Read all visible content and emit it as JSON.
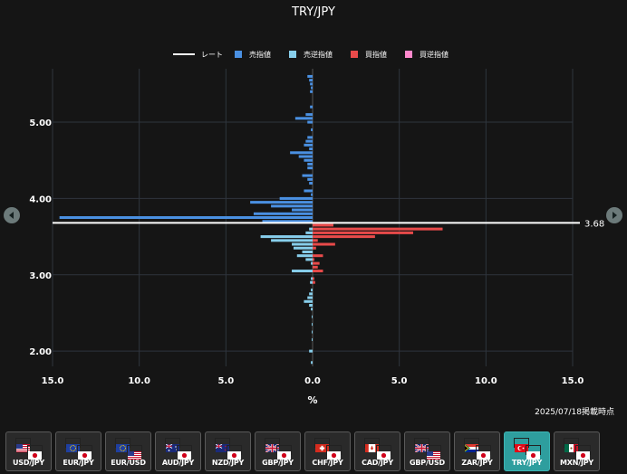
{
  "chart_data": {
    "type": "bar",
    "orientation": "horizontal",
    "title": "TRY/JPY",
    "xlabel": "%",
    "xlim": [
      -15,
      15
    ],
    "x_tick_values": [
      -15,
      -10,
      -5,
      0,
      5,
      10,
      15
    ],
    "x_tick_labels": [
      "15.0",
      "10.0",
      "5.0",
      "0.0",
      "5.0",
      "10.0",
      "15.0"
    ],
    "ylim": [
      1.8,
      5.7
    ],
    "y_tick_values": [
      2.0,
      3.0,
      4.0,
      5.0
    ],
    "y_tick_labels": [
      "2.00",
      "3.00",
      "4.00",
      "5.00"
    ],
    "bin_size": 0.05,
    "grid": true,
    "legend_position": "top",
    "legend": [
      {
        "name": "レート",
        "color": "#ffffff",
        "shape": "line"
      },
      {
        "name": "売指値",
        "color": "#4a90e2",
        "shape": "square"
      },
      {
        "name": "売逆指値",
        "color": "#87ceeb",
        "shape": "square"
      },
      {
        "name": "買指値",
        "color": "#e84a4a",
        "shape": "square"
      },
      {
        "name": "買逆指値",
        "color": "#ff88cc",
        "shape": "square"
      }
    ],
    "rate": {
      "value": 3.68,
      "label": "3.68"
    },
    "series": [
      {
        "name": "売指値",
        "side": "left",
        "color": "#4a90e2",
        "points": [
          {
            "price": 5.6,
            "value": 0.3
          },
          {
            "price": 5.55,
            "value": 0.2
          },
          {
            "price": 5.5,
            "value": 0.15
          },
          {
            "price": 5.45,
            "value": 0.1
          },
          {
            "price": 5.4,
            "value": 0.15
          },
          {
            "price": 5.2,
            "value": 0.15
          },
          {
            "price": 5.1,
            "value": 0.4
          },
          {
            "price": 5.05,
            "value": 1.0
          },
          {
            "price": 5.0,
            "value": 0.3
          },
          {
            "price": 4.9,
            "value": 0.1
          },
          {
            "price": 4.8,
            "value": 0.3
          },
          {
            "price": 4.75,
            "value": 0.4
          },
          {
            "price": 4.7,
            "value": 0.5
          },
          {
            "price": 4.65,
            "value": 0.2
          },
          {
            "price": 4.6,
            "value": 1.3
          },
          {
            "price": 4.55,
            "value": 0.8
          },
          {
            "price": 4.5,
            "value": 0.5
          },
          {
            "price": 4.45,
            "value": 0.3
          },
          {
            "price": 4.4,
            "value": 0.3
          },
          {
            "price": 4.3,
            "value": 0.6
          },
          {
            "price": 4.25,
            "value": 0.3
          },
          {
            "price": 4.2,
            "value": 0.2
          },
          {
            "price": 4.1,
            "value": 0.5
          },
          {
            "price": 4.05,
            "value": 0.1
          },
          {
            "price": 4.0,
            "value": 1.9
          },
          {
            "price": 3.95,
            "value": 3.6
          },
          {
            "price": 3.9,
            "value": 2.4
          },
          {
            "price": 3.85,
            "value": 1.2
          },
          {
            "price": 3.8,
            "value": 3.4
          },
          {
            "price": 3.75,
            "value": 14.6
          },
          {
            "price": 3.7,
            "value": 2.9
          }
        ]
      },
      {
        "name": "売逆指値",
        "side": "left",
        "color": "#87ceeb",
        "points": [
          {
            "price": 3.6,
            "value": 0.2
          },
          {
            "price": 3.55,
            "value": 0.4
          },
          {
            "price": 3.5,
            "value": 3.0
          },
          {
            "price": 3.45,
            "value": 2.4
          },
          {
            "price": 3.4,
            "value": 1.2
          },
          {
            "price": 3.35,
            "value": 1.1
          },
          {
            "price": 3.3,
            "value": 0.6
          },
          {
            "price": 3.25,
            "value": 0.9
          },
          {
            "price": 3.2,
            "value": 0.4
          },
          {
            "price": 3.15,
            "value": 0.1
          },
          {
            "price": 3.05,
            "value": 1.2
          },
          {
            "price": 2.95,
            "value": 0.1
          },
          {
            "price": 2.9,
            "value": 0.15
          },
          {
            "price": 2.8,
            "value": 0.1
          },
          {
            "price": 2.75,
            "value": 0.2
          },
          {
            "price": 2.7,
            "value": 0.3
          },
          {
            "price": 2.65,
            "value": 0.5
          },
          {
            "price": 2.6,
            "value": 0.2
          },
          {
            "price": 2.55,
            "value": 0.1
          },
          {
            "price": 2.45,
            "value": 0.05
          },
          {
            "price": 2.35,
            "value": 0.05
          },
          {
            "price": 2.25,
            "value": 0.05
          },
          {
            "price": 2.15,
            "value": 0.05
          },
          {
            "price": 2.0,
            "value": 0.2
          },
          {
            "price": 1.85,
            "value": 0.1
          }
        ]
      },
      {
        "name": "買指値",
        "side": "right",
        "color": "#e84a4a",
        "points": [
          {
            "price": 3.65,
            "value": 1.2
          },
          {
            "price": 3.6,
            "value": 7.5
          },
          {
            "price": 3.55,
            "value": 5.8
          },
          {
            "price": 3.5,
            "value": 3.6
          },
          {
            "price": 3.45,
            "value": 0.3
          },
          {
            "price": 3.4,
            "value": 1.3
          },
          {
            "price": 3.35,
            "value": 0.2
          },
          {
            "price": 3.25,
            "value": 0.6
          },
          {
            "price": 3.2,
            "value": 0.1
          },
          {
            "price": 3.15,
            "value": 0.4
          },
          {
            "price": 3.1,
            "value": 0.3
          },
          {
            "price": 3.05,
            "value": 0.6
          },
          {
            "price": 2.95,
            "value": 0.1
          },
          {
            "price": 2.9,
            "value": 0.15
          }
        ]
      },
      {
        "name": "買逆指値",
        "side": "right",
        "color": "#ff88cc",
        "points": []
      }
    ]
  },
  "timestamp": "2025/07/18掲載時点",
  "navigation": {
    "prev_icon": "chevron-left-icon",
    "next_icon": "chevron-right-icon"
  },
  "currency_pairs": [
    {
      "label": "USD/JPY",
      "flags": [
        "us",
        "jp"
      ],
      "active": false
    },
    {
      "label": "EUR/JPY",
      "flags": [
        "eu",
        "jp"
      ],
      "active": false
    },
    {
      "label": "EUR/USD",
      "flags": [
        "eu",
        "us"
      ],
      "active": false
    },
    {
      "label": "AUD/JPY",
      "flags": [
        "au",
        "jp"
      ],
      "active": false
    },
    {
      "label": "NZD/JPY",
      "flags": [
        "nz",
        "jp"
      ],
      "active": false
    },
    {
      "label": "GBP/JPY",
      "flags": [
        "gb",
        "jp"
      ],
      "active": false
    },
    {
      "label": "CHF/JPY",
      "flags": [
        "ch",
        "jp"
      ],
      "active": false
    },
    {
      "label": "CAD/JPY",
      "flags": [
        "ca",
        "jp"
      ],
      "active": false
    },
    {
      "label": "GBP/USD",
      "flags": [
        "gb",
        "us"
      ],
      "active": false
    },
    {
      "label": "ZAR/JPY",
      "flags": [
        "za",
        "jp"
      ],
      "active": false
    },
    {
      "label": "TRY/JPY",
      "flags": [
        "tr",
        "jp"
      ],
      "active": true
    },
    {
      "label": "MXN/JPY",
      "flags": [
        "mx",
        "jp"
      ],
      "active": false
    }
  ]
}
